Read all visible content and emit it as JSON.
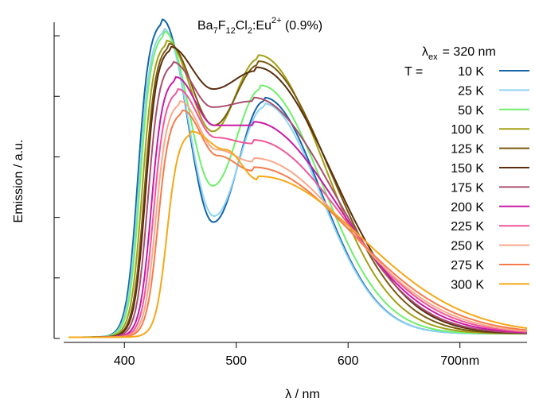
{
  "chart_data": {
    "type": "line",
    "title_parts": {
      "base": "Ba",
      "sub1": "7",
      "f": "F",
      "sub2": "12",
      "cl": "Cl",
      "sub3": "2",
      "eu": ":Eu",
      "sup": "2+",
      "conc": " (0.9%)"
    },
    "xlabel": "λ  /  nm",
    "ylabel": "Emission  /  a.u.",
    "xlim": [
      350,
      760
    ],
    "ylim": [
      0,
      1.05
    ],
    "x_ticks": [
      {
        "value": 400,
        "label": "400"
      },
      {
        "value": 500,
        "label": "500"
      },
      {
        "value": 600,
        "label": "600"
      },
      {
        "value": 700,
        "label": "700nm"
      }
    ],
    "y_ticks": [
      0,
      0.2,
      0.4,
      0.6,
      0.8,
      1.0
    ],
    "excitation": {
      "symbol": "λ",
      "sub": "ex",
      "value": "=  320 nm"
    },
    "legend_prefix": "T  =",
    "grid": false,
    "legend_position": "top-right",
    "series": [
      {
        "name": "10 K",
        "color": "#1565a8",
        "peak1": [
          434,
          1.05,
          11
        ],
        "peak2": [
          525,
          0.78,
          24
        ],
        "valley": 0.38
      },
      {
        "name": "25 K",
        "color": "#8fd3f2",
        "peak1": [
          435,
          1.02,
          11
        ],
        "peak2": [
          525,
          0.76,
          24
        ],
        "valley": 0.4
      },
      {
        "name": "50 K",
        "color": "#6ef06a",
        "peak1": [
          436,
          1.01,
          12
        ],
        "peak2": [
          522,
          0.82,
          26
        ],
        "valley": 0.5
      },
      {
        "name": "100 K",
        "color": "#a2a014",
        "peak1": [
          438,
          0.98,
          13
        ],
        "peak2": [
          520,
          0.92,
          28
        ],
        "valley": 0.68
      },
      {
        "name": "125 K",
        "color": "#7a5a10",
        "peak1": [
          440,
          0.97,
          14
        ],
        "peak2": [
          520,
          0.9,
          30
        ],
        "valley": 0.7
      },
      {
        "name": "150 K",
        "color": "#5a2e0e",
        "peak1": [
          441,
          0.96,
          14
        ],
        "peak2": [
          518,
          0.88,
          32
        ],
        "valley": 0.82
      },
      {
        "name": "175 K",
        "color": "#a84e6e",
        "peak1": [
          443,
          0.91,
          15
        ],
        "peak2": [
          515,
          0.78,
          34
        ],
        "valley": 0.76
      },
      {
        "name": "200 K",
        "color": "#c81aa6",
        "peak1": [
          446,
          0.86,
          16
        ],
        "peak2": [
          515,
          0.7,
          36
        ],
        "valley": 0.7
      },
      {
        "name": "225 K",
        "color": "#f0559a",
        "peak1": [
          448,
          0.82,
          17
        ],
        "peak2": [
          515,
          0.64,
          38
        ],
        "valley": 0.66
      },
      {
        "name": "250 K",
        "color": "#f8a88a",
        "peak1": [
          450,
          0.78,
          18
        ],
        "peak2": [
          515,
          0.58,
          40
        ],
        "valley": 0.62
      },
      {
        "name": "275 K",
        "color": "#f47c4c",
        "peak1": [
          452,
          0.75,
          19
        ],
        "peak2": [
          515,
          0.55,
          42
        ],
        "valley": 0.6
      },
      {
        "name": "300 K",
        "color": "#f5a816",
        "peak1": [
          460,
          0.68,
          22
        ],
        "peak2": [
          520,
          0.52,
          44
        ],
        "valley": 0.62
      }
    ]
  }
}
